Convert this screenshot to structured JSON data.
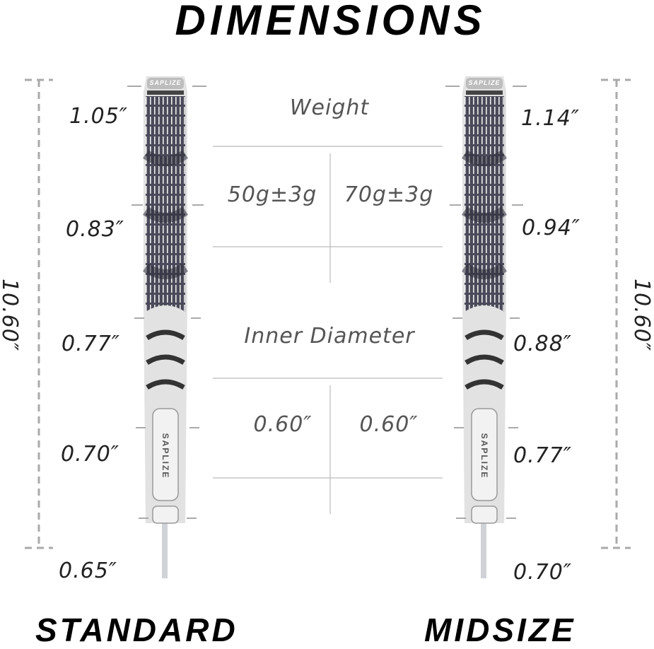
{
  "title": "DIMENSIONS",
  "table": {
    "weight_label": "Weight",
    "weight_values": [
      "50g±3g",
      "70g±3g"
    ],
    "diameter_label": "Inner Diameter",
    "diameter_values": [
      "0.60″",
      "0.60″"
    ]
  },
  "standard": {
    "label": "STANDARD",
    "length": "10.60″",
    "measurements": [
      "1.05″",
      "0.83″",
      "0.77″",
      "0.70″",
      "0.65″"
    ],
    "brand": "SAPLIZE"
  },
  "midsize": {
    "label": "MIDSIZE",
    "length": "10.60″",
    "measurements": [
      "1.14″",
      "0.94″",
      "0.88″",
      "0.77″",
      "0.70″"
    ],
    "brand": "SAPLIZE"
  },
  "colors": {
    "grip_dark": "#4a4a5a",
    "grip_light": "#d8d8d8",
    "dash": "#aaaaaa",
    "line": "#bbbbbb"
  }
}
